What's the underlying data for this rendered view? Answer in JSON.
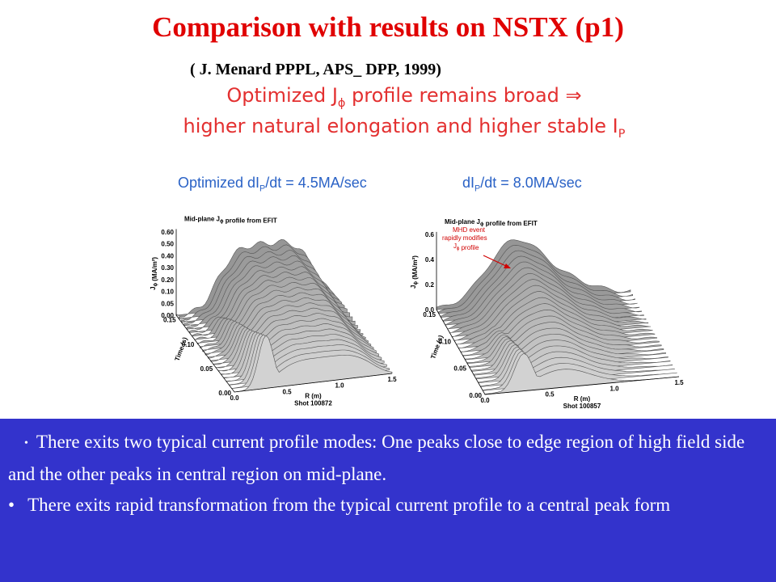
{
  "title": "Comparison with results on NSTX (p1)",
  "citation": "( J. Menard  PPPL, APS_ DPP, 1999)",
  "headline": {
    "line1": {
      "before": "Optimized J",
      "sub": "ϕ",
      "after": " profile remains broad ⇒"
    },
    "line2": {
      "before": "higher natural elongation and higher stable I",
      "sub": "P"
    }
  },
  "panels": [
    {
      "label": {
        "before": "Optimized dI",
        "sub": "P",
        "after": "/dt = 4.5MA/sec"
      },
      "plot_title": {
        "before": "Mid-plane J",
        "sub": "ϕ",
        "after": " profile from EFIT"
      },
      "y_axis": {
        "before": "J",
        "sub": "ϕ",
        "after": " (MA/m²)"
      },
      "yticks": [
        "0.60",
        "0.50",
        "0.40",
        "0.30",
        "0.20",
        "0.10",
        "0.05",
        "0.00"
      ],
      "time_axis": "Time (s)",
      "time_ticks": [
        "0.15",
        "0.10",
        "0.05",
        "0.00"
      ],
      "r_axis": "R (m)",
      "r_ticks": [
        "0.0",
        "0.5",
        "1.0",
        "1.5"
      ],
      "shot": "Shot 100872"
    },
    {
      "label": {
        "before": "dI",
        "sub": "P",
        "after": "/dt = 8.0MA/sec"
      },
      "plot_title": {
        "before": "Mid-plane J",
        "sub": "ϕ",
        "after": " profile from EFIT"
      },
      "y_axis": {
        "before": "J",
        "sub": "ϕ",
        "after": " (MA/m²)"
      },
      "yticks": [
        "0.6",
        "0.4",
        "0.2",
        "0.0"
      ],
      "time_axis": "Time (s)",
      "time_ticks": [
        "0.15",
        "0.10",
        "0.05",
        "0.00"
      ],
      "r_axis": "R (m)",
      "r_ticks": [
        "0.0",
        "0.5",
        "1.0",
        "1.5"
      ],
      "shot": "Shot 100857",
      "annotation": [
        "MHD event",
        "rapidly modifies",
        "J",
        "ϕ",
        " profile"
      ]
    }
  ],
  "bullets": [
    "There exits two typical current profile modes: One peaks close to edge region of high field side and the other peaks in central region on mid-plane.",
    "There exits rapid transformation from the typical current profile to a central peak form"
  ]
}
